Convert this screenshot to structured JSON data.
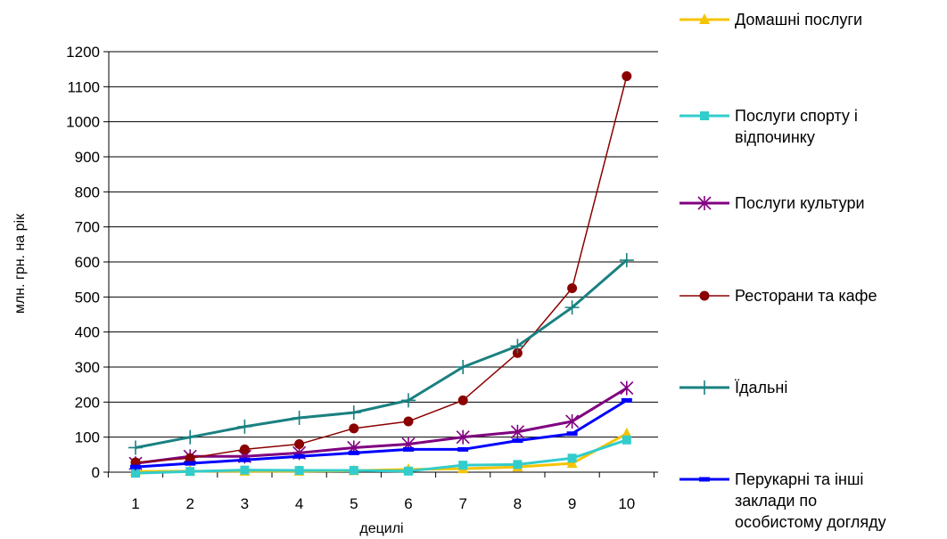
{
  "chart_data": {
    "type": "line",
    "xlabel": "децилі",
    "ylabel": "млн. грн. на рік",
    "ylim": [
      0,
      1200
    ],
    "y_ticks": [
      0,
      100,
      200,
      300,
      400,
      500,
      600,
      700,
      800,
      900,
      1000,
      1100,
      1200
    ],
    "categories": [
      "1",
      "2",
      "3",
      "4",
      "5",
      "6",
      "7",
      "8",
      "9",
      "10"
    ],
    "grid": "horizontal",
    "legend_position": "right",
    "series": [
      {
        "name": "Домашні послуги",
        "color": "#f5c400",
        "marker": "triangle",
        "values": [
          2,
          3,
          3,
          3,
          4,
          8,
          10,
          15,
          25,
          110
        ]
      },
      {
        "name": "Послуги спорту і відпочинку",
        "color": "#33cccc",
        "marker": "square",
        "values": [
          -3,
          2,
          6,
          5,
          5,
          3,
          20,
          22,
          40,
          92
        ]
      },
      {
        "name": "Послуги культури",
        "color": "#800080",
        "marker": "star",
        "values": [
          25,
          45,
          45,
          55,
          70,
          80,
          100,
          115,
          145,
          240
        ]
      },
      {
        "name": "Ресторани та кафе",
        "color": "#8b0000",
        "marker": "circle",
        "values": [
          28,
          40,
          65,
          80,
          125,
          145,
          205,
          340,
          525,
          1130
        ]
      },
      {
        "name": "Їдальні",
        "color": "#1a8080",
        "marker": "plus",
        "values": [
          70,
          100,
          130,
          155,
          170,
          205,
          300,
          360,
          470,
          605
        ]
      },
      {
        "name": "Перукарні та інші заклади по особистому догляду",
        "color": "#0000ff",
        "marker": "dash",
        "values": [
          15,
          25,
          35,
          45,
          55,
          65,
          65,
          90,
          110,
          205
        ]
      }
    ]
  }
}
